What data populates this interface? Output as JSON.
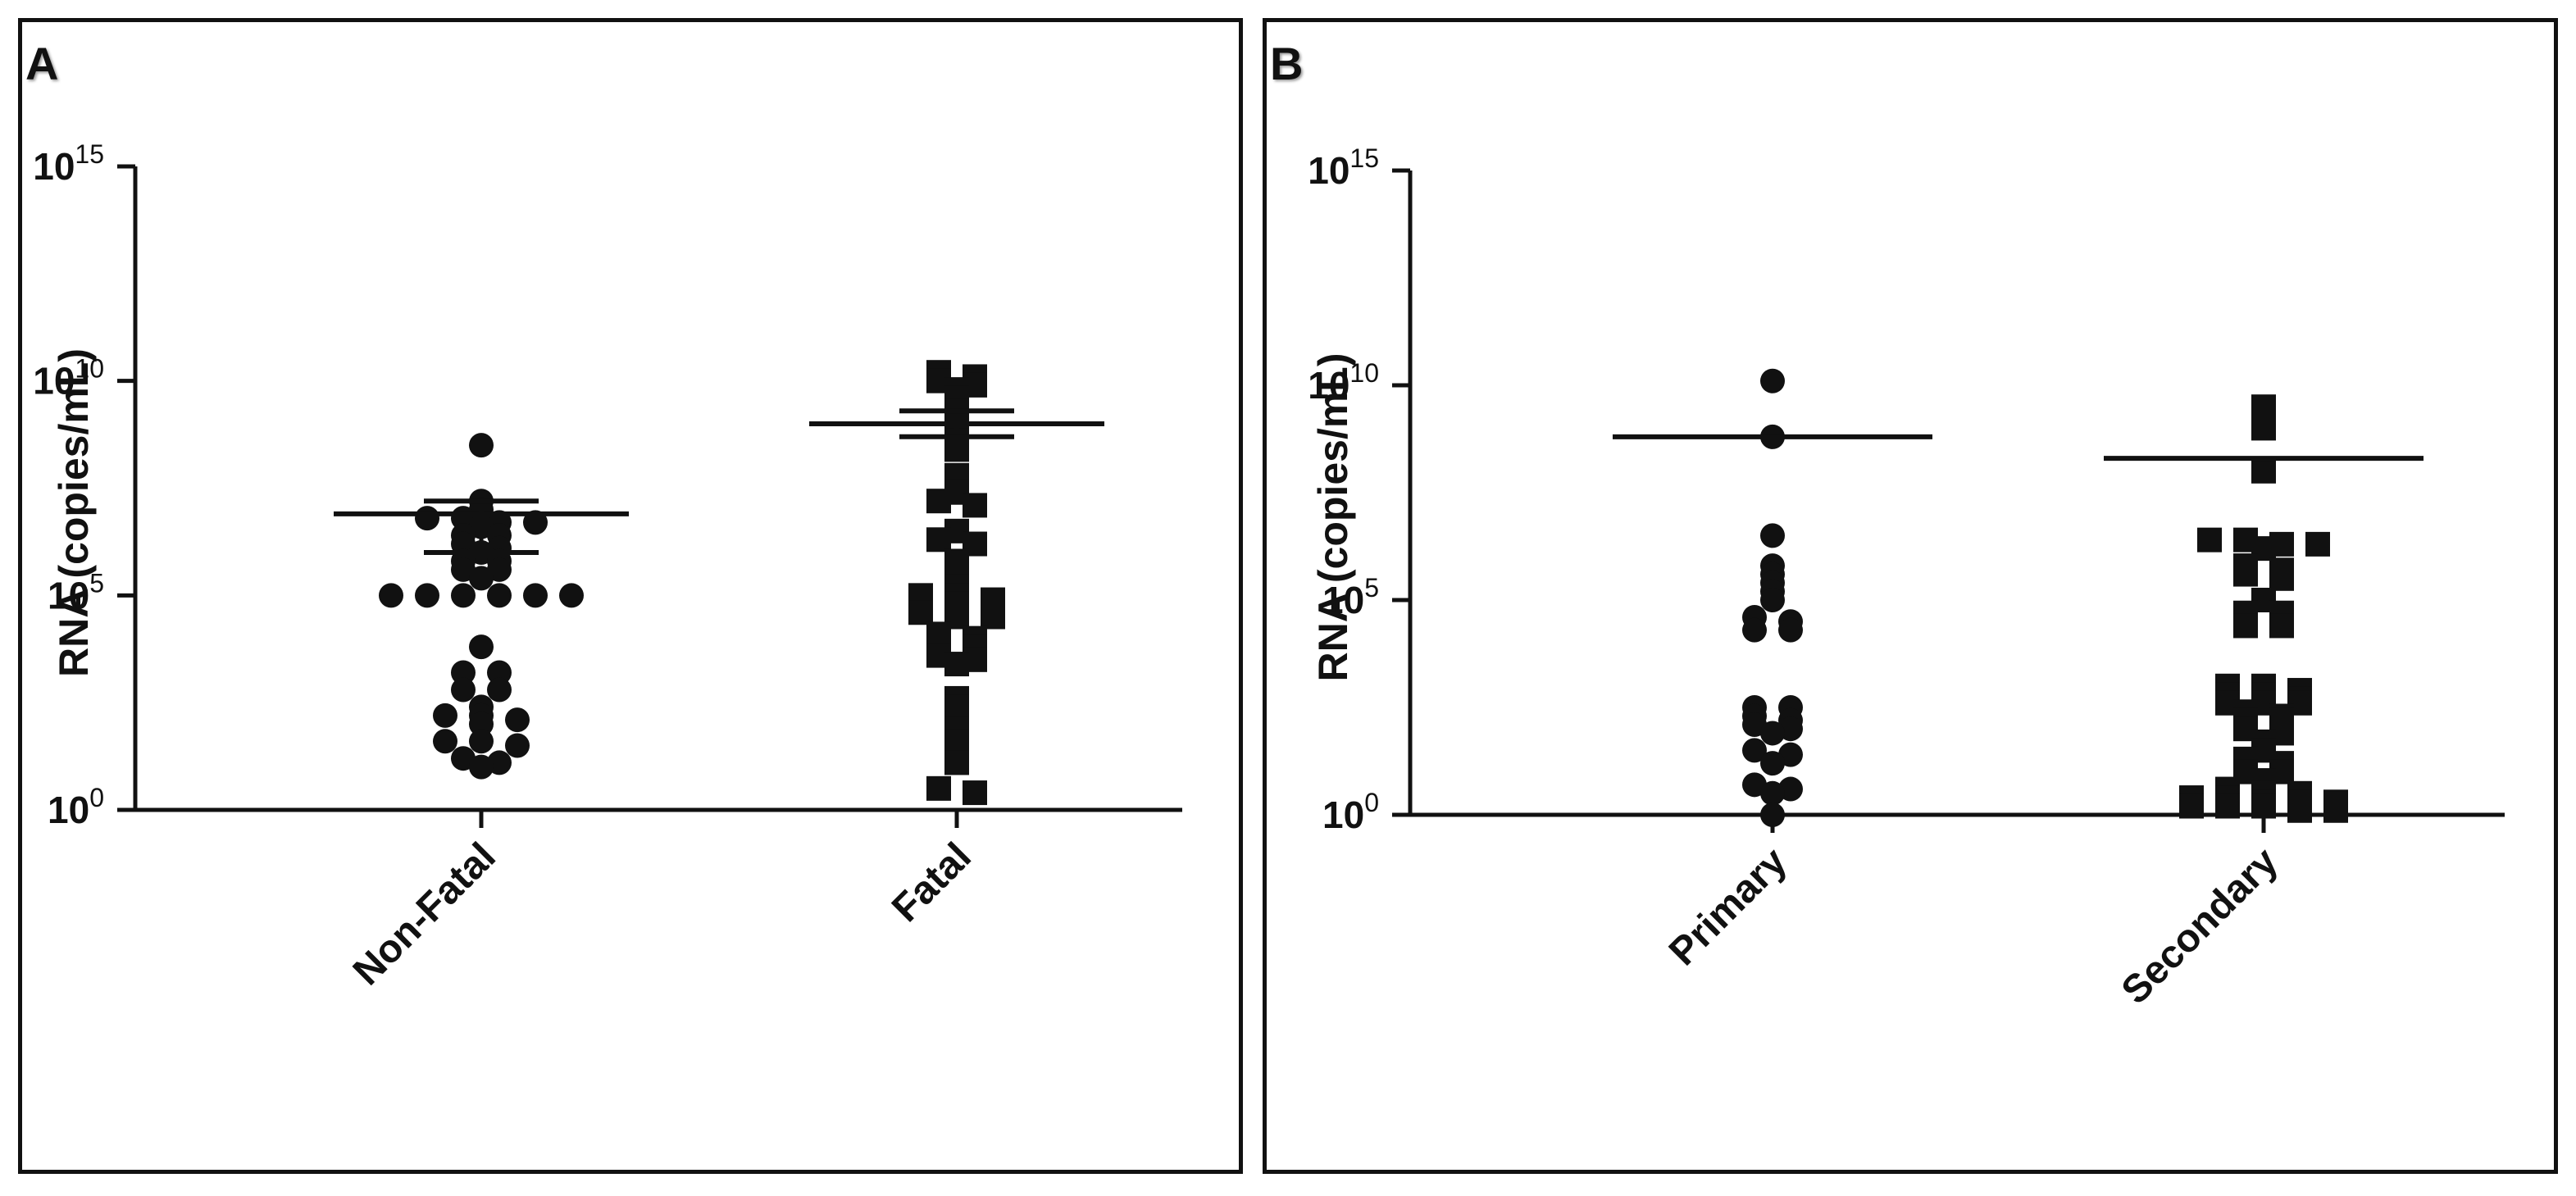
{
  "chart_data": [
    {
      "panel_letter": "A",
      "type": "scatter",
      "scale": "log10",
      "ylabel": "RNA (copies/mL)",
      "ylim_exponents": [
        0,
        15
      ],
      "yticks": [
        {
          "base": "10",
          "exp": "0"
        },
        {
          "base": "10",
          "exp": "5"
        },
        {
          "base": "10",
          "exp": "10"
        },
        {
          "base": "10",
          "exp": "15"
        }
      ],
      "categories": [
        "Non-Fatal",
        "Fatal"
      ],
      "series": [
        {
          "name": "Non-Fatal",
          "marker": "circle",
          "mean_log10": 6.9,
          "sem_upper_log10": 7.2,
          "sem_lower_log10": 6.0,
          "values_log10": [
            8.5,
            7.2,
            7.0,
            6.8,
            6.8,
            6.7,
            6.7,
            6.6,
            6.4,
            6.4,
            6.2,
            6.1,
            6.0,
            5.8,
            5.8,
            5.6,
            5.6,
            5.4,
            5.0,
            5.0,
            5.0,
            5.0,
            5.0,
            5.0,
            3.8,
            3.2,
            3.2,
            2.8,
            2.8,
            2.4,
            2.2,
            2.2,
            2.1,
            2.0,
            1.6,
            1.6,
            1.5,
            1.2,
            1.1,
            1.0
          ]
        },
        {
          "name": "Fatal",
          "marker": "square",
          "mean_log10": 9.0,
          "sem_upper_log10": 9.3,
          "sem_lower_log10": 8.7,
          "values_log10": [
            10.2,
            10.1,
            10.0,
            9.9,
            9.8,
            9.6,
            9.3,
            8.9,
            8.6,
            8.4,
            7.8,
            7.4,
            7.2,
            7.1,
            6.5,
            6.3,
            6.2,
            5.8,
            5.4,
            5.2,
            5.0,
            5.0,
            4.9,
            4.8,
            4.6,
            4.5,
            4.5,
            4.1,
            4.0,
            3.9,
            3.8,
            3.6,
            3.5,
            3.4,
            2.6,
            2.4,
            1.9,
            1.6,
            1.1,
            0.5,
            0.4
          ]
        }
      ]
    },
    {
      "panel_letter": "B",
      "type": "scatter",
      "scale": "log10",
      "ylabel": "RNA (copies/mL)",
      "ylim_exponents": [
        0,
        15
      ],
      "yticks": [
        {
          "base": "10",
          "exp": "0"
        },
        {
          "base": "10",
          "exp": "5"
        },
        {
          "base": "10",
          "exp": "10"
        },
        {
          "base": "10",
          "exp": "15"
        }
      ],
      "categories": [
        "Primary",
        "Secondary"
      ],
      "series": [
        {
          "name": "Primary",
          "marker": "circle",
          "mean_log10": 8.8,
          "values_log10": [
            10.1,
            8.8,
            6.5,
            5.8,
            5.6,
            5.4,
            5.2,
            5.0,
            4.6,
            4.5,
            4.3,
            4.3,
            2.5,
            2.5,
            2.3,
            2.2,
            2.1,
            2.0,
            1.9,
            1.5,
            1.4,
            1.2,
            0.7,
            0.6,
            0.5,
            0.0
          ]
        },
        {
          "name": "Secondary",
          "marker": "square",
          "mean_log10": 8.3,
          "values_log10": [
            9.5,
            9.0,
            8.0,
            6.4,
            6.4,
            6.3,
            6.3,
            6.2,
            5.8,
            5.7,
            5.6,
            5.5,
            5.0,
            4.7,
            4.7,
            4.4,
            4.4,
            3.0,
            3.0,
            2.9,
            2.8,
            2.8,
            2.7,
            2.6,
            2.6,
            2.6,
            2.4,
            2.3,
            2.2,
            2.2,
            2.0,
            1.9,
            1.7,
            1.5,
            1.3,
            1.2,
            1.0,
            1.0,
            0.8,
            0.6,
            0.5,
            0.5,
            0.4,
            0.4,
            0.3,
            0.3,
            0.3,
            0.2,
            0.2,
            0.2,
            0.1,
            0.1
          ]
        }
      ]
    }
  ]
}
